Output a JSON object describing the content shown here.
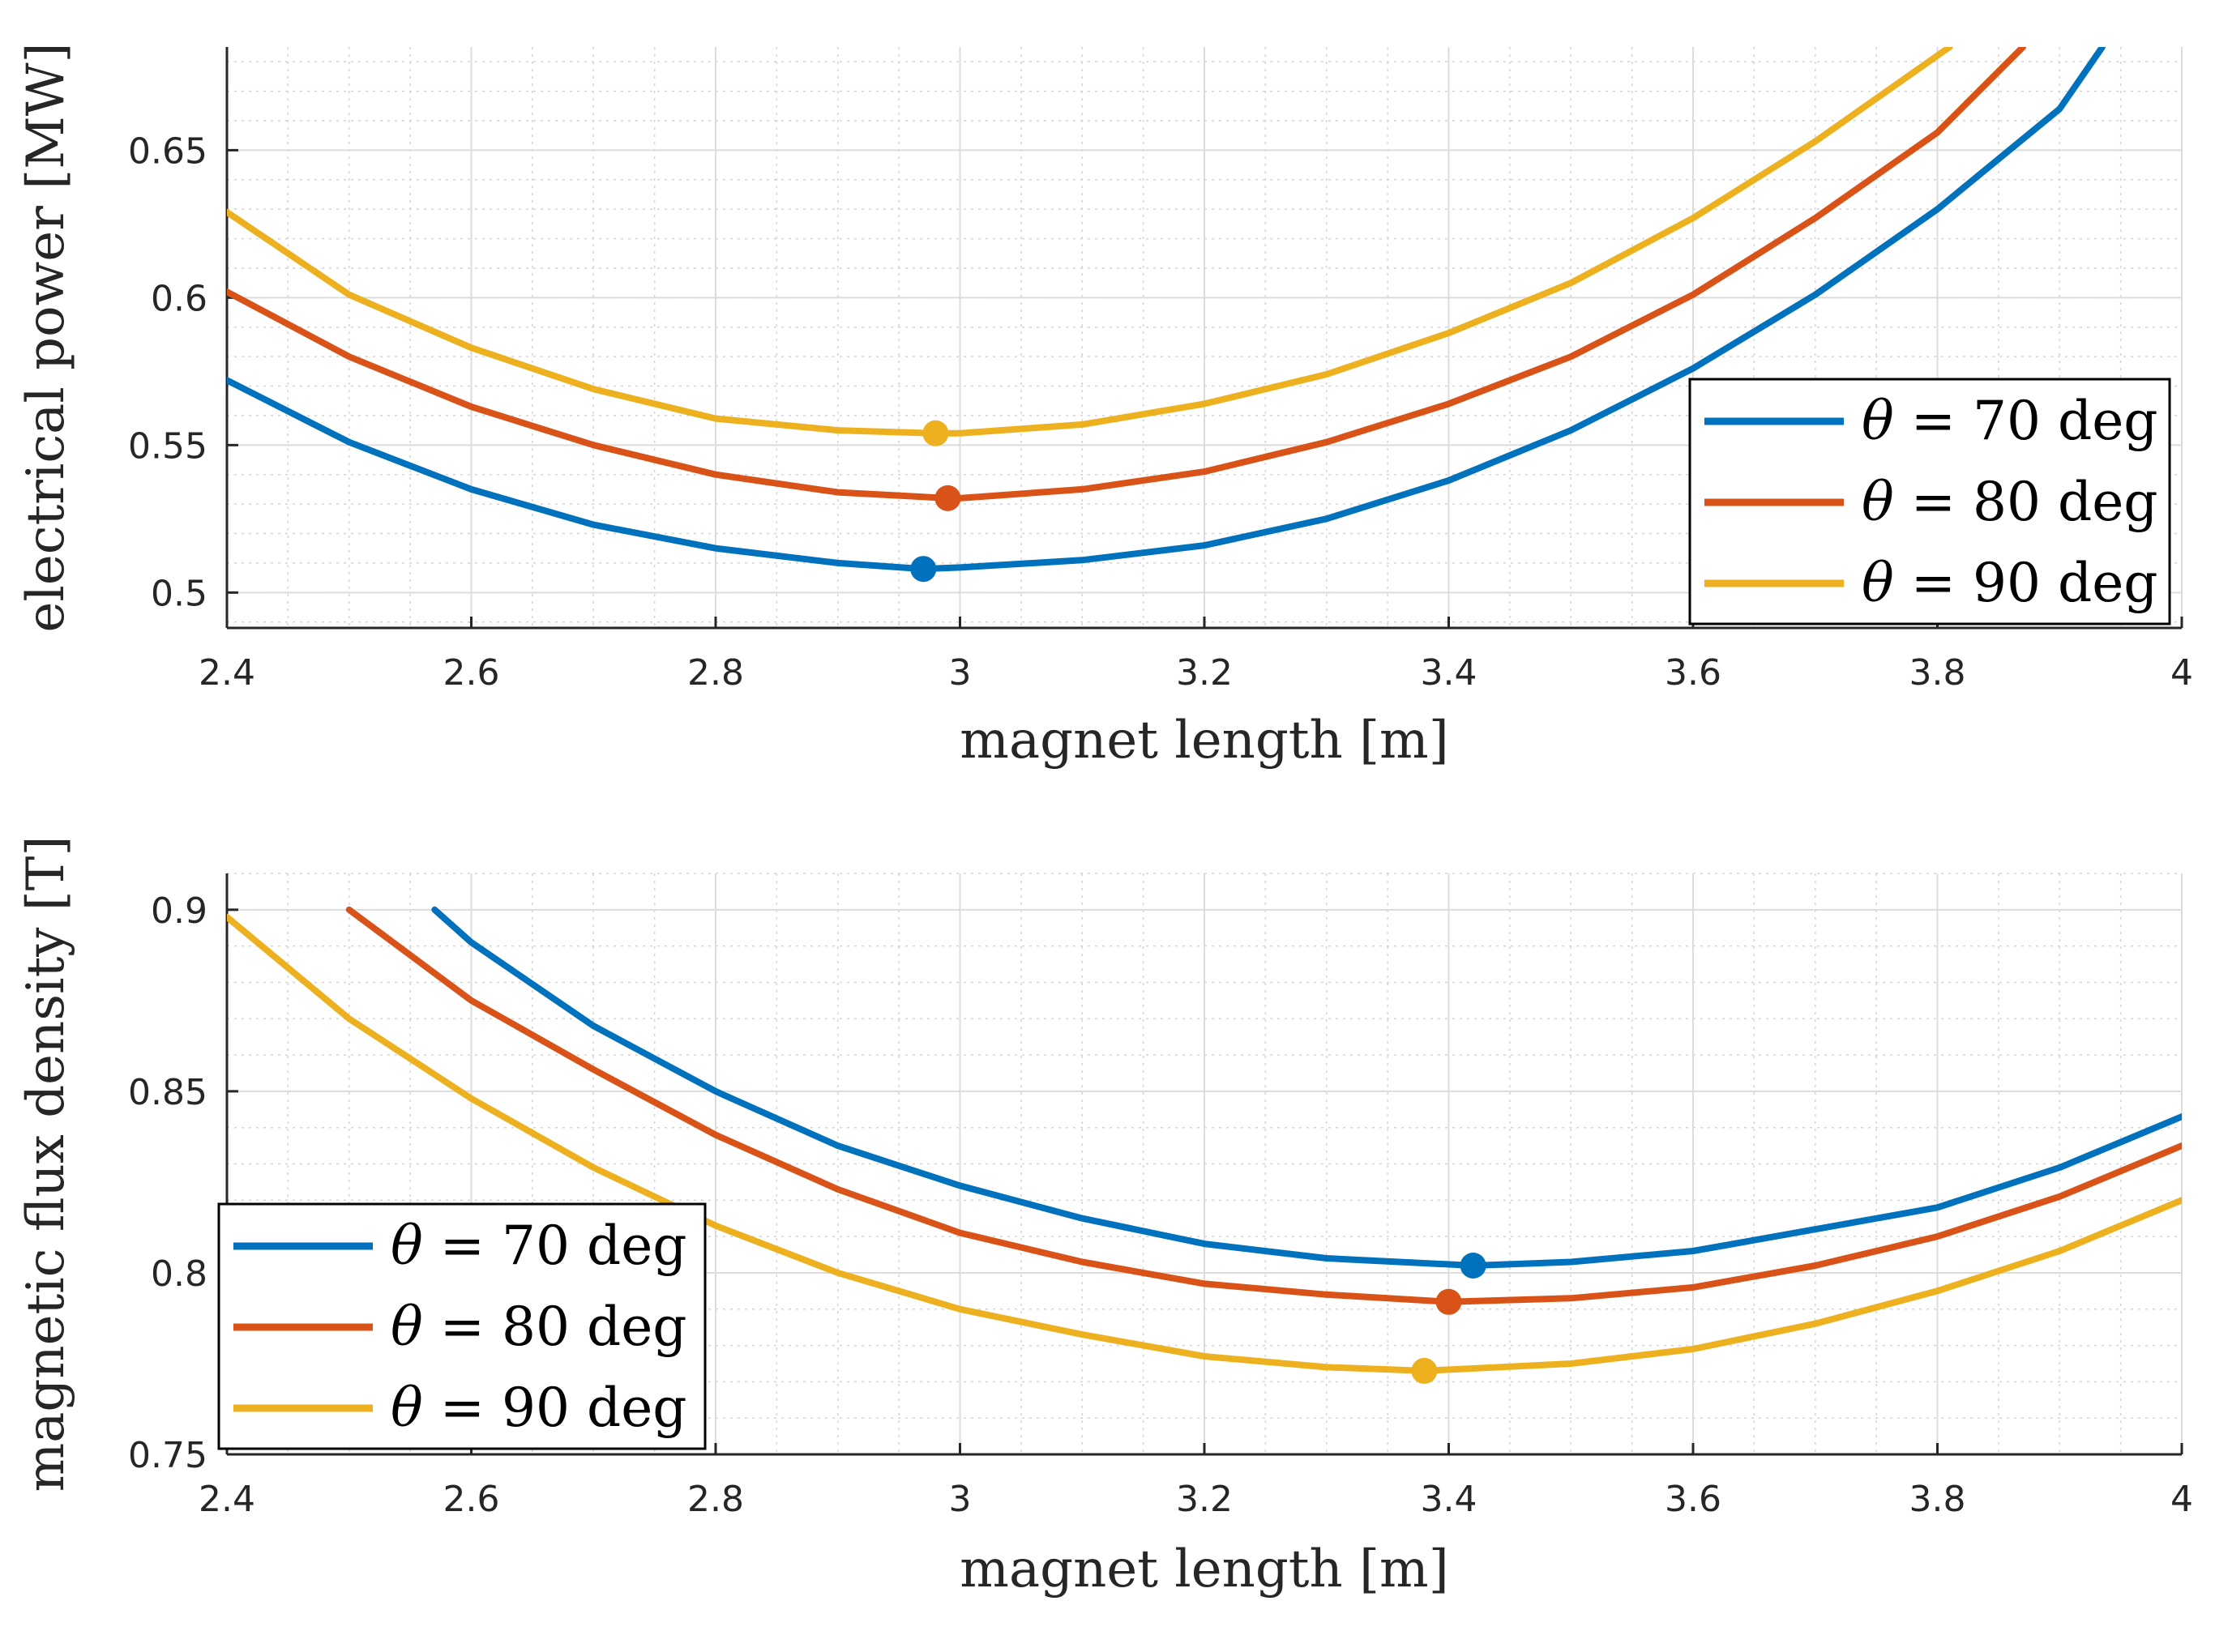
{
  "chart_data": [
    {
      "type": "line",
      "xlabel": "magnet length [m]",
      "ylabel": "electrical power [MW]",
      "xlim": [
        2.4,
        4.0
      ],
      "ylim": [
        0.488,
        0.685
      ],
      "xticks": [
        2.4,
        2.6,
        2.8,
        3.0,
        3.2,
        3.4,
        3.6,
        3.8,
        4.0
      ],
      "xtick_labels": [
        "2.4",
        "2.6",
        "2.8",
        "3",
        "3.2",
        "3.4",
        "3.6",
        "3.8",
        "4"
      ],
      "yticks": [
        0.5,
        0.55,
        0.6,
        0.65
      ],
      "ytick_labels": [
        "0.5",
        "0.55",
        "0.6",
        "0.65"
      ],
      "grid": true,
      "minor_grid": true,
      "legend_position": "right",
      "series": [
        {
          "name": "θ = 70 deg",
          "legend_symbol": "θ",
          "legend_text": "= 70  deg",
          "color": "#0072BD",
          "x": [
            2.4,
            2.5,
            2.6,
            2.7,
            2.8,
            2.9,
            2.97,
            3.0,
            3.1,
            3.2,
            3.3,
            3.4,
            3.5,
            3.6,
            3.7,
            3.8,
            3.9,
            3.935
          ],
          "y": [
            0.572,
            0.551,
            0.535,
            0.523,
            0.515,
            0.51,
            0.508,
            0.5085,
            0.511,
            0.516,
            0.525,
            0.538,
            0.555,
            0.576,
            0.601,
            0.63,
            0.664,
            0.685
          ],
          "optimum": {
            "x": 2.97,
            "y": 0.508
          }
        },
        {
          "name": "θ = 80 deg",
          "legend_symbol": "θ",
          "legend_text": "= 80  deg",
          "color": "#D95319",
          "x": [
            2.4,
            2.5,
            2.6,
            2.7,
            2.8,
            2.9,
            2.99,
            3.0,
            3.1,
            3.2,
            3.3,
            3.4,
            3.5,
            3.6,
            3.7,
            3.8,
            3.87
          ],
          "y": [
            0.602,
            0.58,
            0.563,
            0.55,
            0.54,
            0.534,
            0.532,
            0.532,
            0.535,
            0.541,
            0.551,
            0.564,
            0.58,
            0.601,
            0.627,
            0.656,
            0.685
          ],
          "optimum": {
            "x": 2.99,
            "y": 0.532
          }
        },
        {
          "name": "θ = 90 deg",
          "legend_symbol": "θ",
          "legend_text": "= 90  deg",
          "color": "#EDB120",
          "x": [
            2.4,
            2.5,
            2.6,
            2.7,
            2.8,
            2.9,
            2.98,
            3.0,
            3.1,
            3.2,
            3.3,
            3.4,
            3.5,
            3.6,
            3.7,
            3.81
          ],
          "y": [
            0.629,
            0.601,
            0.583,
            0.569,
            0.559,
            0.555,
            0.554,
            0.554,
            0.557,
            0.564,
            0.574,
            0.588,
            0.605,
            0.627,
            0.653,
            0.685
          ],
          "optimum": {
            "x": 2.98,
            "y": 0.554
          }
        }
      ]
    },
    {
      "type": "line",
      "xlabel": "magnet length [m]",
      "ylabel": "magnetic flux density [T]",
      "xlim": [
        2.4,
        4.0
      ],
      "ylim": [
        0.75,
        0.91
      ],
      "xticks": [
        2.4,
        2.6,
        2.8,
        3.0,
        3.2,
        3.4,
        3.6,
        3.8,
        4.0
      ],
      "xtick_labels": [
        "2.4",
        "2.6",
        "2.8",
        "3",
        "3.2",
        "3.4",
        "3.6",
        "3.8",
        "4"
      ],
      "yticks": [
        0.75,
        0.8,
        0.85,
        0.9
      ],
      "ytick_labels": [
        "0.75",
        "0.8",
        "0.85",
        "0.9"
      ],
      "grid": true,
      "minor_grid": true,
      "legend_position": "bottom-left",
      "series": [
        {
          "name": "θ = 70 deg",
          "legend_symbol": "θ",
          "legend_text": "= 70  deg",
          "color": "#0072BD",
          "x": [
            2.57,
            2.6,
            2.7,
            2.8,
            2.9,
            3.0,
            3.1,
            3.2,
            3.3,
            3.42,
            3.5,
            3.6,
            3.7,
            3.8,
            3.9,
            4.0
          ],
          "y": [
            0.9,
            0.891,
            0.868,
            0.85,
            0.835,
            0.824,
            0.815,
            0.808,
            0.804,
            0.802,
            0.803,
            0.806,
            0.812,
            0.818,
            0.829,
            0.843
          ],
          "optimum": {
            "x": 3.42,
            "y": 0.802
          }
        },
        {
          "name": "θ = 80 deg",
          "legend_symbol": "θ",
          "legend_text": "= 80  deg",
          "color": "#D95319",
          "x": [
            2.5,
            2.6,
            2.7,
            2.8,
            2.9,
            3.0,
            3.1,
            3.2,
            3.3,
            3.4,
            3.5,
            3.6,
            3.7,
            3.8,
            3.9,
            4.0
          ],
          "y": [
            0.9,
            0.875,
            0.856,
            0.838,
            0.823,
            0.811,
            0.803,
            0.797,
            0.794,
            0.792,
            0.793,
            0.796,
            0.802,
            0.81,
            0.821,
            0.835
          ],
          "optimum": {
            "x": 3.4,
            "y": 0.792
          }
        },
        {
          "name": "θ = 90 deg",
          "legend_symbol": "θ",
          "legend_text": "= 90  deg",
          "color": "#EDB120",
          "x": [
            2.4,
            2.5,
            2.6,
            2.7,
            2.8,
            2.9,
            3.0,
            3.1,
            3.2,
            3.3,
            3.38,
            3.5,
            3.6,
            3.7,
            3.8,
            3.9,
            4.0
          ],
          "y": [
            0.898,
            0.87,
            0.848,
            0.829,
            0.813,
            0.8,
            0.79,
            0.783,
            0.777,
            0.774,
            0.773,
            0.775,
            0.779,
            0.786,
            0.795,
            0.806,
            0.82
          ],
          "optimum": {
            "x": 3.38,
            "y": 0.773
          }
        }
      ]
    }
  ]
}
